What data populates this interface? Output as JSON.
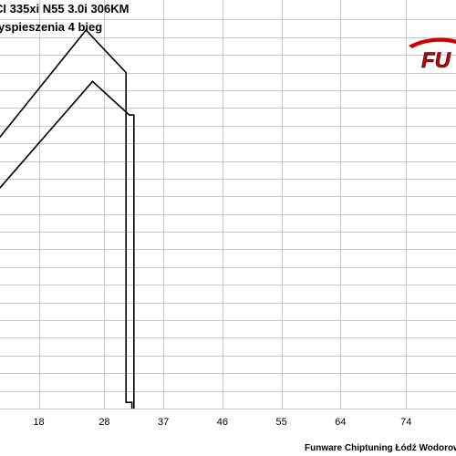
{
  "title_lines": [
    "CI 335xi N55 3.0i 306KM",
    "yspieszenia 4 bieg"
  ],
  "logo_text": "FU",
  "credit": "Funware Chiptuning Łódź Wodorowan",
  "chart_data": {
    "type": "line",
    "title": "CI 335xi N55 3.0i 306KM",
    "subtitle": "yspieszenia 4 bieg",
    "xlabel": "",
    "ylabel": "",
    "xlim": [
      10,
      83
    ],
    "ylim": [
      0,
      23
    ],
    "grid": true,
    "x_ticks": [
      18,
      28,
      37,
      46,
      55,
      64,
      74
    ],
    "y_ticks": [
      0,
      1,
      2,
      3,
      4,
      5,
      6,
      7,
      8,
      9,
      10,
      11,
      12,
      13,
      14,
      15,
      16,
      17,
      18,
      19,
      20,
      21,
      22
    ],
    "legend": "none",
    "colors": {
      "series": "#000000",
      "grid": "#c8c8c8",
      "logo": "#cc0000"
    },
    "series": [
      {
        "values_x": [
          10,
          25.2,
          31.3,
          31.3,
          32.2,
          32.2
        ],
        "values_y": [
          14.4,
          21.4,
          19.0,
          0.35,
          0.35,
          0
        ]
      },
      {
        "values_x": [
          10,
          26.2,
          31.8,
          32.5,
          32.5
        ],
        "values_y": [
          11.6,
          18.5,
          16.6,
          16.6,
          0
        ]
      }
    ]
  }
}
